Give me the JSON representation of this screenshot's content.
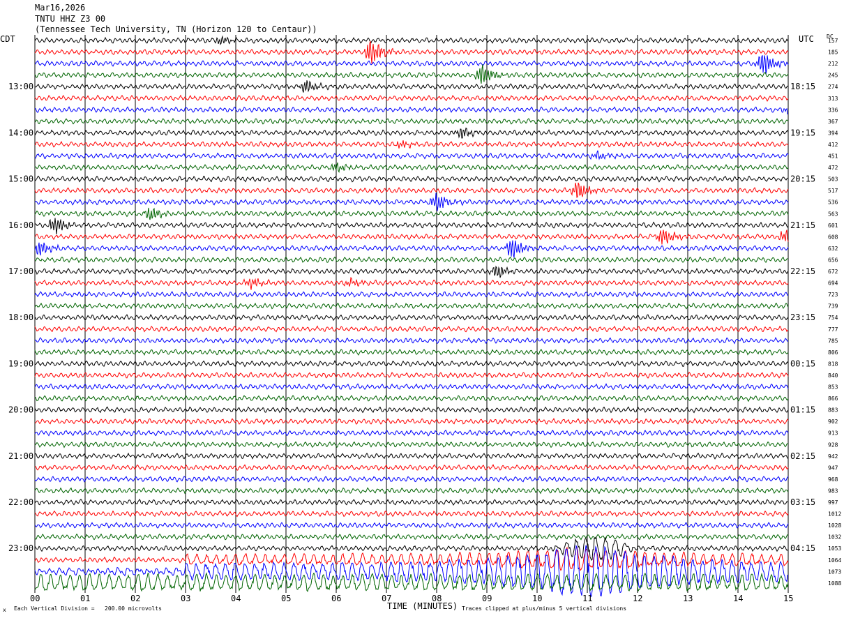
{
  "header": {
    "date": "Mar16,2026",
    "station": "TNTU HHZ Z3 00",
    "location": "(Tennessee Tech University, TN (Horizon 120 to Centaur))"
  },
  "chart_data": {
    "type": "line",
    "title": "Mar16,2026",
    "left_axis_label": "CDT",
    "right_axis_label": "UTC",
    "dc_label": "DC",
    "xlabel": "TIME (MINUTES)",
    "x_ticks": [
      "00",
      "01",
      "02",
      "03",
      "04",
      "05",
      "06",
      "07",
      "08",
      "09",
      "10",
      "11",
      "12",
      "13",
      "14",
      "15"
    ],
    "xlim": [
      0,
      15
    ],
    "trace_colors": [
      "#000000",
      "#ff0000",
      "#0000ff",
      "#006400"
    ],
    "left_hour_labels": [
      "13:00",
      "14:00",
      "15:00",
      "16:00",
      "17:00",
      "18:00",
      "19:00",
      "20:00",
      "21:00",
      "22:00",
      "23:00"
    ],
    "right_hour_labels": [
      "18:15",
      "19:15",
      "20:15",
      "21:15",
      "22:15",
      "23:15",
      "00:15",
      "01:15",
      "02:15",
      "03:15",
      "04:15"
    ],
    "dc_offsets": [
      "157",
      "185",
      "212",
      "245",
      "274",
      "313",
      "336",
      "367",
      "394",
      "412",
      "451",
      "472",
      "503",
      "517",
      "536",
      "563",
      "601",
      "608",
      "632",
      "656",
      "672",
      "694",
      "723",
      "739",
      "754",
      "777",
      "785",
      "806",
      "818",
      "840",
      "853",
      "866",
      "883",
      "902",
      "913",
      "928",
      "942",
      "947",
      "968",
      "983",
      "997",
      "1012",
      "1028",
      "1032",
      "1053",
      "1064",
      "1073",
      "1088"
    ],
    "trace_count": 48,
    "first_labeled_trace": 4,
    "events": [
      {
        "trace": 0,
        "minute": 3.7,
        "amp": 5
      },
      {
        "trace": 1,
        "minute": 6.7,
        "amp": 18
      },
      {
        "trace": 2,
        "minute": 14.5,
        "amp": 16
      },
      {
        "trace": 3,
        "minute": 8.9,
        "amp": 14
      },
      {
        "trace": 4,
        "minute": 5.4,
        "amp": 9
      },
      {
        "trace": 6,
        "minute": 15.0,
        "amp": 5
      },
      {
        "trace": 8,
        "minute": 8.5,
        "amp": 8
      },
      {
        "trace": 9,
        "minute": 7.3,
        "amp": 5
      },
      {
        "trace": 10,
        "minute": 11.2,
        "amp": 5
      },
      {
        "trace": 11,
        "minute": 6.0,
        "amp": 6
      },
      {
        "trace": 13,
        "minute": 10.8,
        "amp": 12
      },
      {
        "trace": 14,
        "minute": 8.0,
        "amp": 12
      },
      {
        "trace": 15,
        "minute": 2.3,
        "amp": 9
      },
      {
        "trace": 16,
        "minute": 0.4,
        "amp": 12
      },
      {
        "trace": 17,
        "minute": 12.5,
        "amp": 11
      },
      {
        "trace": 17,
        "minute": 14.95,
        "amp": 10
      },
      {
        "trace": 18,
        "minute": 0.1,
        "amp": 10
      },
      {
        "trace": 18,
        "minute": 9.5,
        "amp": 14
      },
      {
        "trace": 20,
        "minute": 9.2,
        "amp": 9
      },
      {
        "trace": 21,
        "minute": 4.3,
        "amp": 7
      },
      {
        "trace": 21,
        "minute": 6.3,
        "amp": 5
      }
    ],
    "scale_note": "Each Vertical Division =   200.00 microvolts",
    "clip_note": "Traces clipped at plus/minus 5 vertical divisions"
  }
}
